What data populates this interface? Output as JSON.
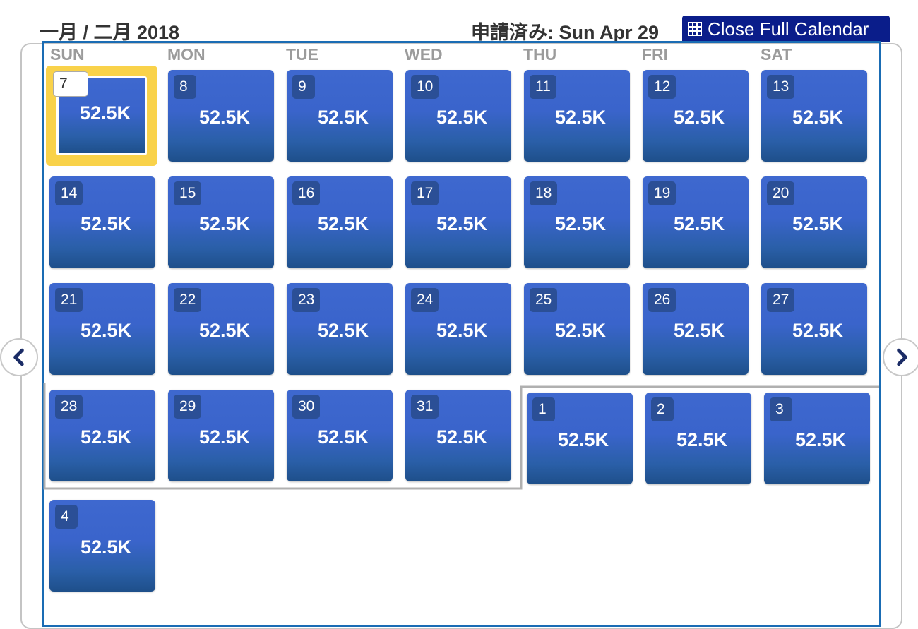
{
  "header": {
    "month_title": "一月 / 二月 2018",
    "requested_label": "申請済み: Sun Apr 29",
    "close_button_label": "Close Full Calendar"
  },
  "weekdays": [
    "SUN",
    "MON",
    "TUE",
    "WED",
    "THU",
    "FRI",
    "SAT"
  ],
  "days": [
    {
      "day": "7",
      "price": "52.5K",
      "selected": true
    },
    {
      "day": "8",
      "price": "52.5K"
    },
    {
      "day": "9",
      "price": "52.5K"
    },
    {
      "day": "10",
      "price": "52.5K"
    },
    {
      "day": "11",
      "price": "52.5K"
    },
    {
      "day": "12",
      "price": "52.5K"
    },
    {
      "day": "13",
      "price": "52.5K"
    },
    {
      "day": "14",
      "price": "52.5K"
    },
    {
      "day": "15",
      "price": "52.5K"
    },
    {
      "day": "16",
      "price": "52.5K"
    },
    {
      "day": "17",
      "price": "52.5K"
    },
    {
      "day": "18",
      "price": "52.5K"
    },
    {
      "day": "19",
      "price": "52.5K"
    },
    {
      "day": "20",
      "price": "52.5K"
    },
    {
      "day": "21",
      "price": "52.5K"
    },
    {
      "day": "22",
      "price": "52.5K"
    },
    {
      "day": "23",
      "price": "52.5K"
    },
    {
      "day": "24",
      "price": "52.5K"
    },
    {
      "day": "25",
      "price": "52.5K"
    },
    {
      "day": "26",
      "price": "52.5K"
    },
    {
      "day": "27",
      "price": "52.5K"
    },
    {
      "day": "28",
      "price": "52.5K"
    },
    {
      "day": "29",
      "price": "52.5K"
    },
    {
      "day": "30",
      "price": "52.5K"
    },
    {
      "day": "31",
      "price": "52.5K"
    },
    {
      "day": "1",
      "price": "52.5K",
      "next_month": true
    },
    {
      "day": "2",
      "price": "52.5K",
      "next_month": true
    },
    {
      "day": "3",
      "price": "52.5K",
      "next_month": true
    },
    {
      "day": "4",
      "price": "52.5K",
      "next_month": true
    }
  ],
  "nav": {
    "prev_icon": "chevron-left-icon",
    "next_icon": "chevron-right-icon"
  },
  "colors": {
    "cell_blue": "#3e68cf",
    "selected_gold": "#f9d24a",
    "frame_blue": "#1a6cb4",
    "button_navy": "#0a1d8a"
  }
}
